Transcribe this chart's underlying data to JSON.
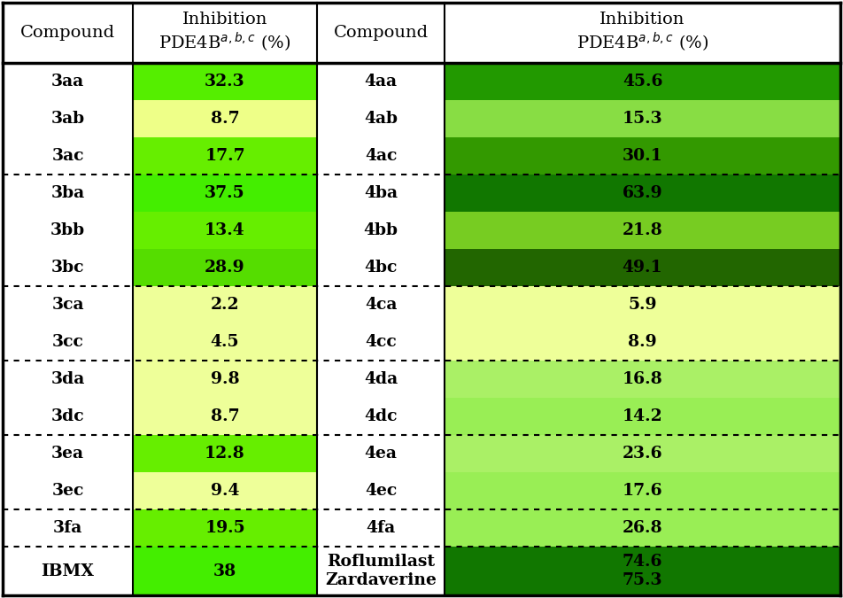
{
  "header_labels": [
    "Compound",
    "Inhibition\nPDE4B$^{a,b,c}$ (%)",
    "Compound",
    "Inhibition\nPDE4B$^{a,b,c}$ (%)"
  ],
  "rows": [
    [
      "3aa",
      "32.3",
      "4aa",
      "45.6"
    ],
    [
      "3ab",
      "8.7",
      "4ab",
      "15.3"
    ],
    [
      "3ac",
      "17.7",
      "4ac",
      "30.1"
    ],
    [
      "3ba",
      "37.5",
      "4ba",
      "63.9"
    ],
    [
      "3bb",
      "13.4",
      "4bb",
      "21.8"
    ],
    [
      "3bc",
      "28.9",
      "4bc",
      "49.1"
    ],
    [
      "3ca",
      "2.2",
      "4ca",
      "5.9"
    ],
    [
      "3cc",
      "4.5",
      "4cc",
      "8.9"
    ],
    [
      "3da",
      "9.8",
      "4da",
      "16.8"
    ],
    [
      "3dc",
      "8.7",
      "4dc",
      "14.2"
    ],
    [
      "3ea",
      "12.8",
      "4ea",
      "23.6"
    ],
    [
      "3ec",
      "9.4",
      "4ec",
      "17.6"
    ],
    [
      "3fa",
      "19.5",
      "4fa",
      "26.8"
    ],
    [
      "IBMX",
      "38",
      "Roflumilast\nZardaverine",
      "74.6\n75.3"
    ]
  ],
  "bold_compound_left": [
    0,
    3,
    6,
    8,
    10,
    12
  ],
  "bold_compound_right": [
    0,
    3,
    6,
    8,
    10,
    12
  ],
  "cell_colors_left": [
    "#55ee00",
    "#eeff88",
    "#66ee00",
    "#44ee00",
    "#66ee00",
    "#55dd00",
    "#eeff99",
    "#eeff99",
    "#eeff99",
    "#eeff99",
    "#66ee00",
    "#eeff99",
    "#66ee00",
    "#44ee00"
  ],
  "cell_colors_right": [
    "#229900",
    "#88dd44",
    "#339900",
    "#117700",
    "#77cc22",
    "#226600",
    "#eeff99",
    "#eeff99",
    "#aaf066",
    "#99ee55",
    "#aaf066",
    "#99ee55",
    "#99ee55",
    "#117700"
  ],
  "group_separators_after": [
    2,
    5,
    7,
    9,
    11,
    12
  ],
  "background_color": "#ffffff"
}
